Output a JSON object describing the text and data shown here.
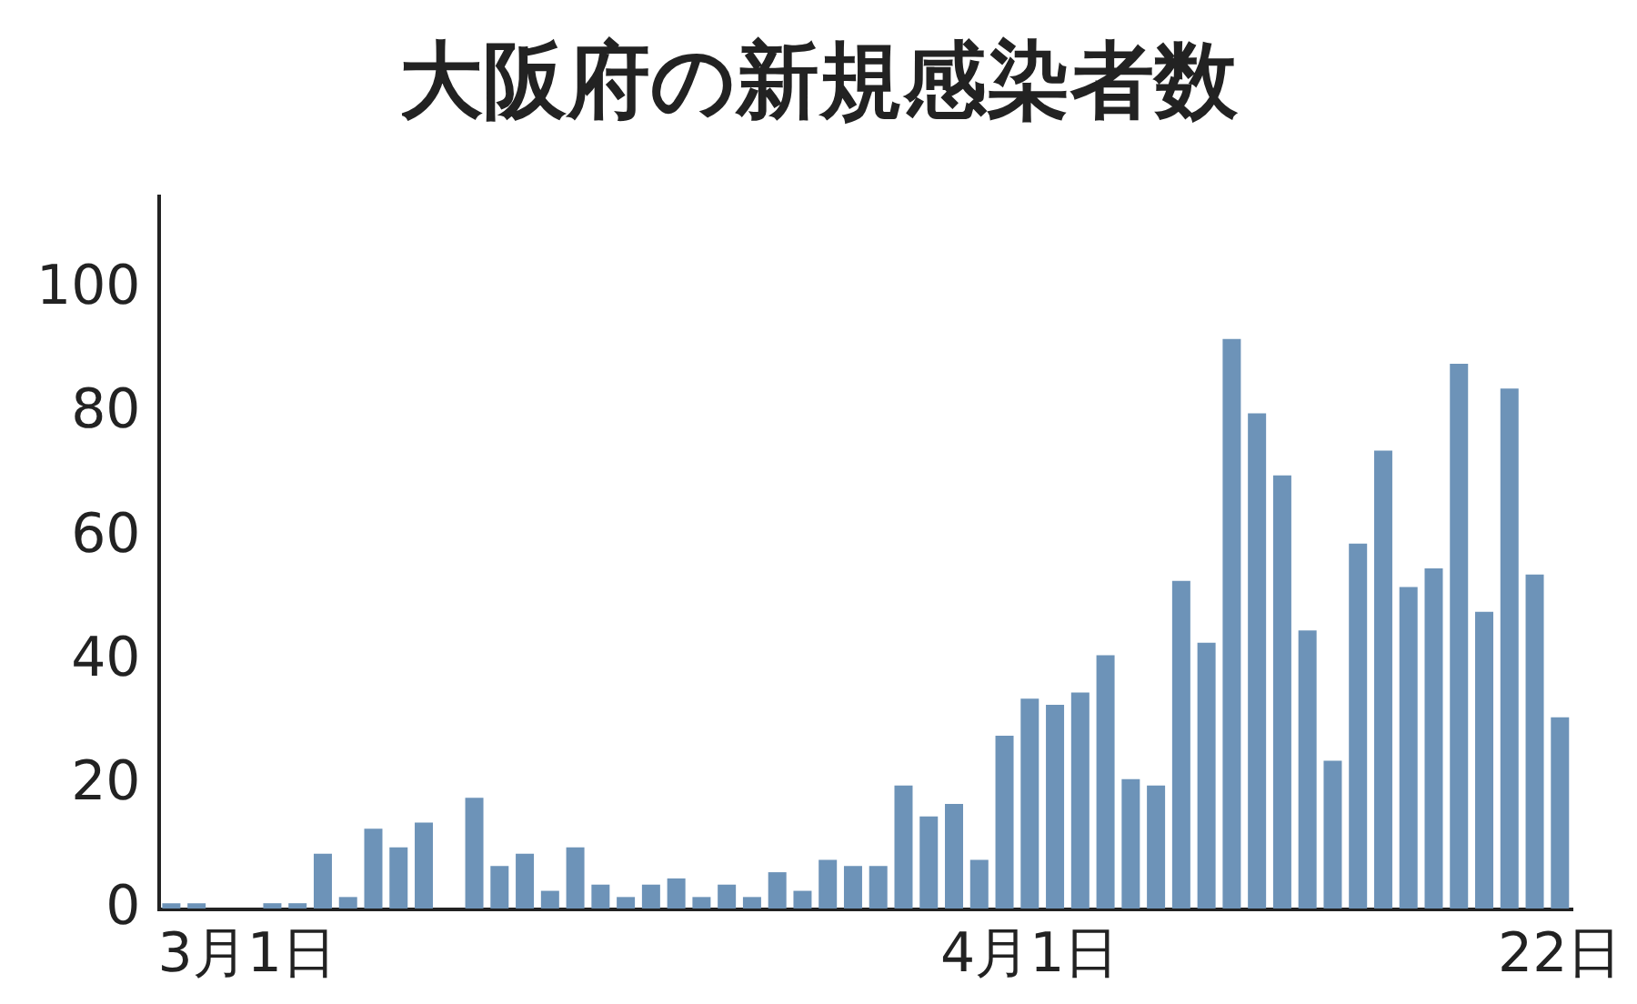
{
  "chart_data": {
    "type": "bar",
    "title": "大阪府の新規感染者数",
    "categories": [
      null,
      null,
      null,
      "3月1日",
      null,
      null,
      null,
      null,
      null,
      null,
      null,
      null,
      null,
      null,
      null,
      null,
      null,
      null,
      null,
      null,
      null,
      null,
      null,
      null,
      null,
      null,
      null,
      null,
      null,
      null,
      null,
      null,
      null,
      null,
      "4月1日",
      null,
      null,
      null,
      null,
      null,
      null,
      null,
      null,
      null,
      null,
      null,
      null,
      null,
      null,
      null,
      null,
      null,
      null,
      null,
      null,
      "22日"
    ],
    "values": [
      1,
      1,
      0,
      0,
      1,
      1,
      9,
      2,
      13,
      10,
      14,
      0,
      18,
      7,
      9,
      3,
      10,
      4,
      2,
      4,
      5,
      2,
      4,
      2,
      6,
      3,
      8,
      7,
      7,
      20,
      15,
      17,
      8,
      28,
      34,
      33,
      35,
      41,
      21,
      20,
      53,
      43,
      92,
      80,
      70,
      45,
      24,
      59,
      74,
      52,
      55,
      88,
      48,
      84,
      54,
      31
    ],
    "color": "#6d93b8",
    "ylim": [
      0,
      115
    ],
    "yticks": [
      0,
      20,
      40,
      60,
      80,
      100
    ],
    "grid": false,
    "legend": false
  }
}
